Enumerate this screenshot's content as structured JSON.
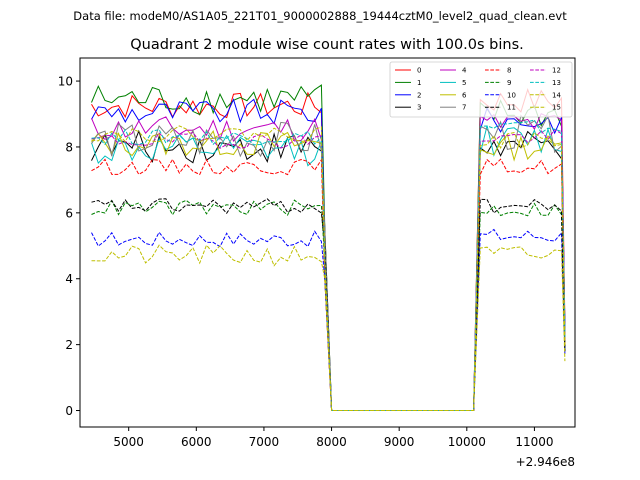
{
  "figure": {
    "suptitle": "Data file: modeM0/AS1A05_221T01_9000002888_19444cztM0_level2_quad_clean.evt",
    "axis_offset_label": "+2.946e8"
  },
  "chart_data": {
    "type": "line",
    "title": "Quadrant 2 module wise count rates with 100.0s bins.",
    "xlabel": "",
    "ylabel": "",
    "xlim": [
      4280,
      11600
    ],
    "ylim": [
      -0.5,
      10.7
    ],
    "x_offset": 294600000,
    "xticks": [
      5000,
      6000,
      7000,
      8000,
      9000,
      10000,
      11000
    ],
    "xtick_labels": [
      "5000",
      "6000",
      "7000",
      "8000",
      "9000",
      "10000",
      "11000"
    ],
    "yticks": [
      0,
      2,
      4,
      6,
      8,
      10
    ],
    "ytick_labels": [
      "0",
      "2",
      "4",
      "6",
      "8",
      "10"
    ],
    "grid": false,
    "legend_placement": "top-right",
    "legend_columns": 4,
    "series": [
      {
        "name": "0",
        "color": "#ff0000",
        "dash": "solid",
        "base": 9.25,
        "noise": 0.25,
        "gap_start": 4.0,
        "after": 9.4,
        "end": 2.6
      },
      {
        "name": "1",
        "color": "#008000",
        "dash": "solid",
        "base": 9.45,
        "noise": 0.3,
        "gap_start": 5.5,
        "after": 9.0,
        "end": 2.5
      },
      {
        "name": "2",
        "color": "#0000ff",
        "dash": "solid",
        "base": 9.05,
        "noise": 0.25,
        "gap_start": 5.0,
        "after": 8.8,
        "end": 2.4
      },
      {
        "name": "3",
        "color": "#000000",
        "dash": "solid",
        "base": 8.0,
        "noise": 0.3,
        "gap_start": 5.5,
        "after": 8.0,
        "end": 1.8
      },
      {
        "name": "4",
        "color": "#bf00bf",
        "dash": "solid",
        "base": 8.55,
        "noise": 0.25,
        "gap_start": 5.0,
        "after": 8.7,
        "end": 2.3
      },
      {
        "name": "5",
        "color": "#00bfbf",
        "dash": "solid",
        "base": 7.9,
        "noise": 0.3,
        "gap_start": 5.0,
        "after": 8.2,
        "end": 2.2
      },
      {
        "name": "6",
        "color": "#bfbf00",
        "dash": "solid",
        "base": 8.1,
        "noise": 0.25,
        "gap_start": 4.0,
        "after": 8.0,
        "end": 2.0
      },
      {
        "name": "7",
        "color": "#808080",
        "dash": "solid",
        "base": 8.2,
        "noise": 0.35,
        "gap_start": 5.5,
        "after": 8.4,
        "end": 2.1
      },
      {
        "name": "8",
        "color": "#ff0000",
        "dash": "dashed",
        "base": 7.4,
        "noise": 0.15,
        "gap_start": 4.0,
        "after": 7.4,
        "end": 2.0
      },
      {
        "name": "9",
        "color": "#008000",
        "dash": "dashed",
        "base": 6.15,
        "noise": 0.15,
        "gap_start": 4.5,
        "after": 6.1,
        "end": 1.8
      },
      {
        "name": "10",
        "color": "#0000ff",
        "dash": "dashed",
        "base": 5.2,
        "noise": 0.15,
        "gap_start": 4.0,
        "after": 5.3,
        "end": 1.7
      },
      {
        "name": "11",
        "color": "#000000",
        "dash": "dashed",
        "base": 6.2,
        "noise": 0.15,
        "gap_start": 5.0,
        "after": 6.2,
        "end": 1.8
      },
      {
        "name": "12",
        "color": "#bf00bf",
        "dash": "dashed",
        "base": 8.2,
        "noise": 0.15,
        "gap_start": 4.5,
        "after": 8.3,
        "end": 2.1
      },
      {
        "name": "13",
        "color": "#00bfbf",
        "dash": "dashed",
        "base": 8.3,
        "noise": 0.15,
        "gap_start": 4.5,
        "after": 8.6,
        "end": 2.2
      },
      {
        "name": "14",
        "color": "#bfbf00",
        "dash": "dashed",
        "base": 4.7,
        "noise": 0.2,
        "gap_start": 4.0,
        "after": 4.7,
        "end": 1.5
      },
      {
        "name": "15",
        "color": "#bfbf00",
        "dash": "dashed",
        "base": 8.4,
        "noise": 0.15,
        "gap_start": 4.5,
        "after": 8.2,
        "end": 2.0
      }
    ],
    "x_segments": {
      "active1_start": 4450,
      "active1_end": 7850,
      "gap_start": 8000,
      "gap_end": 10100,
      "active2_start": 10200,
      "active2_end": 11400,
      "final_x": 11450,
      "step": 100
    }
  }
}
